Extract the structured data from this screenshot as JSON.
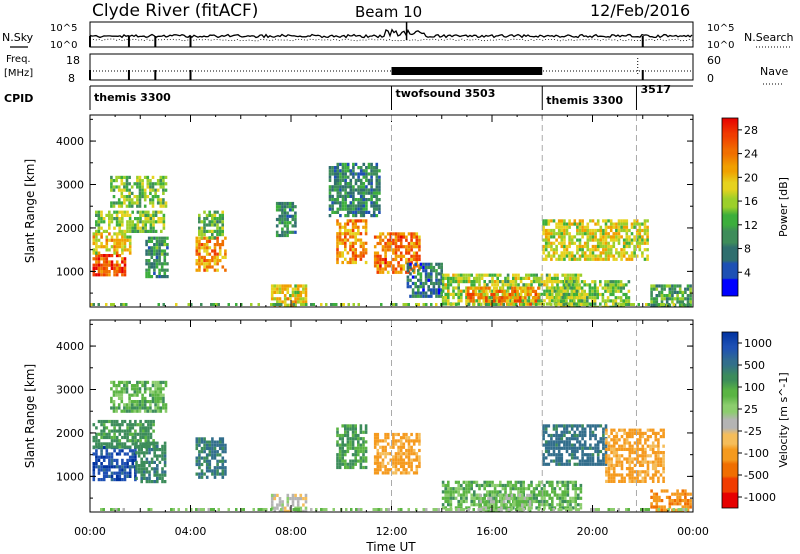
{
  "header": {
    "title": "Clyde River (fitACF)",
    "beam": "Beam 10",
    "date": "12/Feb/2016"
  },
  "top_panels": {
    "nsky_label": "N.Sky",
    "nsearch_label": "N.Search",
    "freq_label_1": "Freq.",
    "freq_label_2": "[MHz]",
    "nave_label": "Nave",
    "cpid_label": "CPID",
    "noise_ticks_left": [
      "10^5",
      "10^0"
    ],
    "noise_ticks_right": [
      "10^5",
      "10^0"
    ],
    "freq_ticks": [
      "18",
      "8"
    ],
    "nave_ticks": [
      "60",
      "0"
    ]
  },
  "cpid": [
    {
      "label": "themis 3300",
      "start_hour": 0.0
    },
    {
      "label": "twofsound 3503",
      "start_hour": 12.0
    },
    {
      "label": "themis 3300",
      "start_hour": 18.0
    },
    {
      "label": "3517",
      "start_hour": 21.75
    }
  ],
  "colors": {
    "power_scale": [
      "#0000ff",
      "#1e50b4",
      "#2f6e6e",
      "#3e8c5a",
      "#3cae3c",
      "#9ccf2a",
      "#e6d21e",
      "#f0a000",
      "#f06e00",
      "#f03c00",
      "#e60000"
    ],
    "velocity_scale": [
      "#e60000",
      "#f03c00",
      "#f06e00",
      "#f59a1e",
      "#f5bd5a",
      "#b4b4b4",
      "#8ccd6e",
      "#5ab443",
      "#3c8c5a",
      "#326e8c",
      "#1e50b4",
      "#0032a0"
    ],
    "sky_noise": "#000000",
    "search_noise": "#000000"
  },
  "chart_data": [
    {
      "type": "heatmap",
      "name": "power",
      "xlabel": "",
      "ylabel": "Slant Range [km]",
      "xlim": [
        0,
        24
      ],
      "ylim": [
        180,
        4600
      ],
      "y_ticks": [
        "4000",
        "3000",
        "2000",
        "1000"
      ],
      "colorbar_label": "Power [dB]",
      "colorbar_ticks": [
        "28",
        "24",
        "20",
        "16",
        "12",
        "8",
        "4"
      ],
      "colorbar_range": [
        0,
        30
      ],
      "regions": [
        {
          "t0": 0.1,
          "t1": 1.4,
          "r0": 900,
          "r1": 1400,
          "value": 26
        },
        {
          "t0": 0.1,
          "t1": 1.6,
          "r0": 1400,
          "r1": 1900,
          "value": 18
        },
        {
          "t0": 0.2,
          "t1": 2.9,
          "r0": 1900,
          "r1": 2400,
          "value": 14
        },
        {
          "t0": 0.8,
          "t1": 3.0,
          "r0": 2500,
          "r1": 3200,
          "value": 13
        },
        {
          "t0": 2.2,
          "t1": 3.1,
          "r0": 900,
          "r1": 1800,
          "value": 9
        },
        {
          "t0": 4.2,
          "t1": 5.4,
          "r0": 1000,
          "r1": 1800,
          "value": 22
        },
        {
          "t0": 4.3,
          "t1": 5.3,
          "r0": 1800,
          "r1": 2400,
          "value": 12
        },
        {
          "t0": 7.2,
          "t1": 8.6,
          "r0": 200,
          "r1": 700,
          "value": 18
        },
        {
          "t0": 7.4,
          "t1": 8.2,
          "r0": 1800,
          "r1": 2600,
          "value": 8
        },
        {
          "t0": 9.8,
          "t1": 11.0,
          "r0": 1200,
          "r1": 2200,
          "value": 22
        },
        {
          "t0": 9.5,
          "t1": 11.5,
          "r0": 2300,
          "r1": 3500,
          "value": 8
        },
        {
          "t0": 11.3,
          "t1": 13.1,
          "r0": 1000,
          "r1": 1900,
          "value": 24
        },
        {
          "t0": 12.6,
          "t1": 14.0,
          "r0": 400,
          "r1": 1200,
          "value": 6
        },
        {
          "t0": 14.0,
          "t1": 19.5,
          "r0": 250,
          "r1": 950,
          "value": 15
        },
        {
          "t0": 15.0,
          "t1": 17.8,
          "r0": 250,
          "r1": 650,
          "value": 22
        },
        {
          "t0": 18.0,
          "t1": 22.2,
          "r0": 1300,
          "r1": 2200,
          "value": 17
        },
        {
          "t0": 18.5,
          "t1": 21.5,
          "r0": 200,
          "r1": 800,
          "value": 14
        },
        {
          "t0": 22.3,
          "t1": 23.9,
          "r0": 250,
          "r1": 700,
          "value": 11
        }
      ]
    },
    {
      "type": "heatmap",
      "name": "velocity",
      "xlabel": "Time UT",
      "ylabel": "Slant Range [km]",
      "xlim": [
        0,
        24
      ],
      "ylim": [
        180,
        4600
      ],
      "x_ticks": [
        "00:00",
        "04:00",
        "08:00",
        "12:00",
        "16:00",
        "20:00",
        "00:00"
      ],
      "y_ticks": [
        "4000",
        "3000",
        "2000",
        "1000"
      ],
      "colorbar_label": "Velocity [m s^-1]",
      "colorbar_ticks": [
        "1000",
        "500",
        "100",
        "25",
        "-25",
        "-100",
        "-500",
        "-1000"
      ],
      "regions": [
        {
          "t0": 0.1,
          "t1": 1.8,
          "r0": 900,
          "r1": 1700,
          "value": 700
        },
        {
          "t0": 0.1,
          "t1": 2.5,
          "r0": 1700,
          "r1": 2300,
          "value": 150
        },
        {
          "t0": 0.8,
          "t1": 3.0,
          "r0": 2500,
          "r1": 3200,
          "value": 60
        },
        {
          "t0": 1.8,
          "t1": 3.0,
          "r0": 900,
          "r1": 1800,
          "value": 200
        },
        {
          "t0": 4.2,
          "t1": 5.4,
          "r0": 1000,
          "r1": 1900,
          "value": 300
        },
        {
          "t0": 7.2,
          "t1": 8.6,
          "r0": 200,
          "r1": 600,
          "value": -60
        },
        {
          "t0": 9.8,
          "t1": 11.0,
          "r0": 1200,
          "r1": 2200,
          "value": 120
        },
        {
          "t0": 11.3,
          "t1": 13.1,
          "r0": 1100,
          "r1": 2000,
          "value": -300
        },
        {
          "t0": 14.0,
          "t1": 19.5,
          "r0": 250,
          "r1": 900,
          "value": 60
        },
        {
          "t0": 15.5,
          "t1": 17.5,
          "r0": 200,
          "r1": 600,
          "value": 0
        },
        {
          "t0": 18.0,
          "t1": 20.5,
          "r0": 1300,
          "r1": 2200,
          "value": 350
        },
        {
          "t0": 20.5,
          "t1": 22.8,
          "r0": 900,
          "r1": 2100,
          "value": -300
        },
        {
          "t0": 22.3,
          "t1": 23.9,
          "r0": 250,
          "r1": 700,
          "value": -400
        }
      ]
    }
  ]
}
